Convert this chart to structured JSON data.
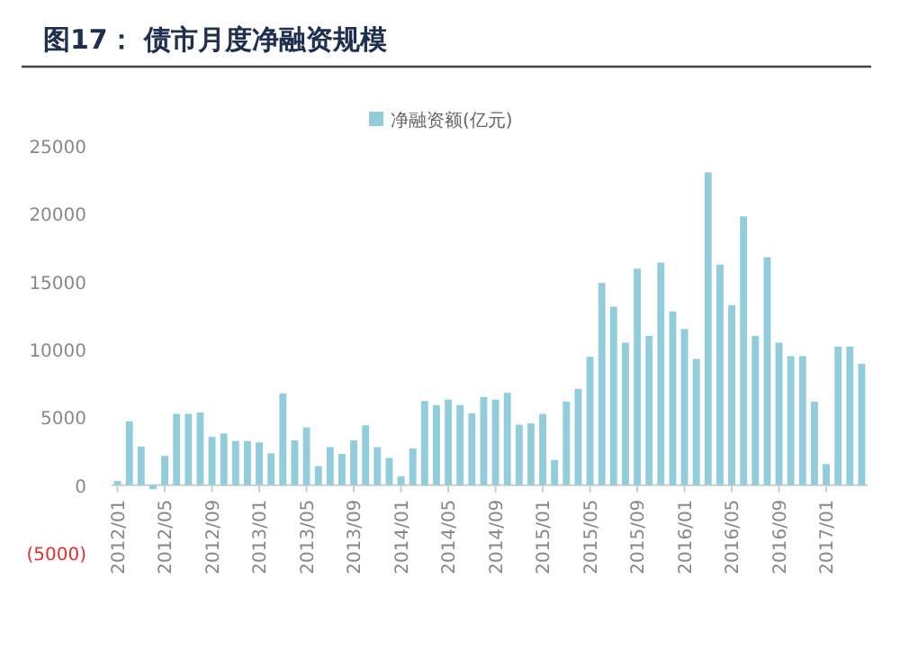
{
  "chart_data": {
    "type": "bar",
    "title": "图17：    债市月度净融资规模",
    "legend": "top",
    "categories": [
      "2012/01",
      null,
      null,
      null,
      "2012/05",
      null,
      null,
      null,
      "2012/09",
      null,
      null,
      null,
      "2013/01",
      null,
      null,
      null,
      "2013/05",
      null,
      null,
      null,
      "2013/09",
      null,
      null,
      null,
      "2014/01",
      null,
      null,
      null,
      "2014/05",
      null,
      null,
      null,
      "2014/09",
      null,
      null,
      null,
      "2015/01",
      null,
      null,
      null,
      "2015/05",
      null,
      null,
      null,
      "2015/09",
      null,
      null,
      null,
      "2016/01",
      null,
      null,
      null,
      "2016/05",
      null,
      null,
      null,
      "2016/09",
      null,
      null,
      null,
      "2017/01",
      null,
      null,
      null
    ],
    "series": [
      {
        "name": "净融资额(亿元)",
        "color": "#92cddc",
        "values": [
          300,
          4700,
          2850,
          -300,
          2150,
          5250,
          5250,
          5350,
          3550,
          3800,
          3250,
          3250,
          3150,
          2350,
          6750,
          3300,
          4250,
          1400,
          2800,
          2300,
          3300,
          4400,
          2800,
          2000,
          650,
          2700,
          6200,
          5900,
          6300,
          5900,
          5300,
          6500,
          6300,
          6800,
          4450,
          4550,
          5250,
          1850,
          6150,
          7100,
          9450,
          14900,
          13150,
          10500,
          15950,
          11000,
          16400,
          12800,
          11500,
          9300,
          23050,
          16250,
          13250,
          19800,
          11000,
          16800,
          10500,
          9500,
          9500,
          6150,
          1550,
          10200,
          10200,
          8950
        ]
      }
    ],
    "ylim": [
      -5000,
      25000
    ],
    "yticks": [
      {
        "value": -5000,
        "label": "(5000)"
      },
      0,
      5000,
      10000,
      15000,
      20000,
      25000
    ]
  }
}
